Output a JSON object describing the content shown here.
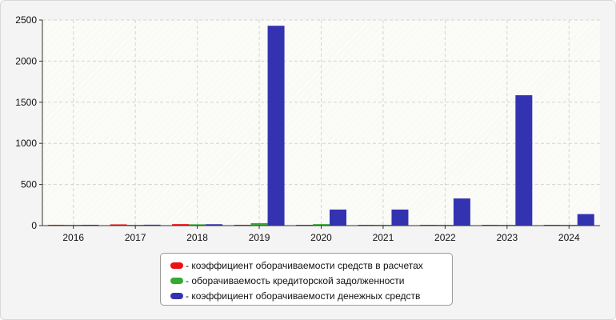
{
  "chart_data": {
    "type": "bar",
    "categories": [
      "2016",
      "2017",
      "2018",
      "2019",
      "2020",
      "2021",
      "2022",
      "2023",
      "2024"
    ],
    "series": [
      {
        "name": "- коэффициент оборачиваемости средств в расчетах",
        "color": "#ee1111",
        "values": [
          10,
          15,
          18,
          10,
          9,
          9,
          9,
          9,
          8
        ]
      },
      {
        "name": "- оборачиваемость кредиторской задолженности",
        "color": "#33aa33",
        "values": [
          8,
          9,
          16,
          30,
          18,
          10,
          8,
          8,
          7
        ]
      },
      {
        "name": "- коэффициент оборачиваемости денежных средств",
        "color": "#3333b2",
        "values": [
          10,
          11,
          17,
          2430,
          195,
          195,
          330,
          1585,
          140
        ]
      }
    ],
    "ylim": [
      0,
      2500
    ],
    "yticks": [
      0,
      500,
      1000,
      1500,
      2000,
      2500
    ],
    "grid": true,
    "legend_position": "bottom-center",
    "title": "",
    "xlabel": "",
    "ylabel": ""
  }
}
